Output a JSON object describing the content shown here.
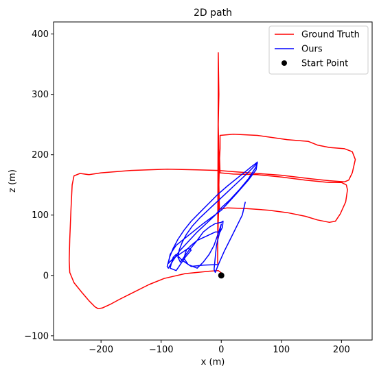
{
  "chart_data": {
    "type": "line",
    "title": "2D path",
    "xlabel": "x (m)",
    "ylabel": "z (m)",
    "xlim": [
      -279,
      251
    ],
    "ylim": [
      -107,
      420
    ],
    "xticks": [
      -200,
      -100,
      0,
      100,
      200
    ],
    "yticks": [
      -100,
      0,
      100,
      200,
      300,
      400
    ],
    "xtick_labels": [
      "−200",
      "−100",
      "0",
      "100",
      "200"
    ],
    "ytick_labels": [
      "−100",
      "0",
      "100",
      "200",
      "300",
      "400"
    ],
    "grid": false,
    "legend_position": "top-right",
    "series": [
      {
        "name": "Ground Truth",
        "color": "#ff0000",
        "values": [
          [
            0,
            0
          ],
          [
            -1,
            5
          ],
          [
            -5,
            8
          ],
          [
            -20,
            7
          ],
          [
            -60,
            3
          ],
          [
            -95,
            -5
          ],
          [
            -120,
            -15
          ],
          [
            -150,
            -30
          ],
          [
            -170,
            -40
          ],
          [
            -185,
            -48
          ],
          [
            -198,
            -54
          ],
          [
            -205,
            -55
          ],
          [
            -210,
            -52
          ],
          [
            -220,
            -42
          ],
          [
            -232,
            -28
          ],
          [
            -245,
            -12
          ],
          [
            -252,
            5
          ],
          [
            -253,
            25
          ],
          [
            -252,
            60
          ],
          [
            -250,
            110
          ],
          [
            -248,
            150
          ],
          [
            -245,
            165
          ],
          [
            -235,
            169
          ],
          [
            -220,
            167
          ],
          [
            -200,
            170
          ],
          [
            -150,
            174
          ],
          [
            -90,
            176
          ],
          [
            -40,
            175
          ],
          [
            -5,
            174
          ],
          [
            20,
            172
          ],
          [
            60,
            169
          ],
          [
            100,
            166
          ],
          [
            150,
            160
          ],
          [
            180,
            157
          ],
          [
            205,
            155
          ],
          [
            212,
            158
          ],
          [
            218,
            170
          ],
          [
            223,
            192
          ],
          [
            218,
            205
          ],
          [
            205,
            210
          ],
          [
            180,
            212
          ],
          [
            160,
            216
          ],
          [
            145,
            222
          ],
          [
            110,
            225
          ],
          [
            60,
            232
          ],
          [
            20,
            234
          ],
          [
            -2,
            232
          ],
          [
            -2,
            210
          ],
          [
            -3,
            190
          ],
          [
            -4,
            150
          ],
          [
            -4,
            120
          ],
          [
            -5,
            90
          ],
          [
            -6,
            50
          ],
          [
            -6,
            20
          ],
          [
            -5,
            340
          ],
          [
            -5,
            369
          ],
          [
            -4,
            300
          ],
          [
            -5,
            250
          ],
          [
            -4,
            200
          ],
          [
            -4,
            150
          ],
          [
            -3,
            110
          ],
          [
            0,
            110
          ],
          [
            10,
            112
          ],
          [
            40,
            111
          ],
          [
            80,
            108
          ],
          [
            110,
            104
          ],
          [
            140,
            98
          ],
          [
            160,
            92
          ],
          [
            180,
            88
          ],
          [
            190,
            90
          ],
          [
            198,
            102
          ],
          [
            207,
            122
          ],
          [
            210,
            142
          ],
          [
            208,
            150
          ],
          [
            200,
            154
          ],
          [
            180,
            154
          ],
          [
            140,
            158
          ],
          [
            100,
            163
          ],
          [
            60,
            167
          ],
          [
            20,
            168
          ],
          [
            -2,
            170
          ],
          [
            -3,
            200
          ]
        ]
      },
      {
        "name": "Ours",
        "color": "#0000ff",
        "values": [
          [
            -10,
            5
          ],
          [
            -8,
            10
          ],
          [
            -5,
            18
          ],
          [
            -30,
            17
          ],
          [
            -50,
            15
          ],
          [
            -65,
            25
          ],
          [
            -75,
            35
          ],
          [
            -80,
            30
          ],
          [
            -83,
            20
          ],
          [
            -85,
            12
          ],
          [
            -75,
            8
          ],
          [
            -60,
            30
          ],
          [
            -50,
            42
          ],
          [
            -55,
            45
          ],
          [
            -65,
            38
          ],
          [
            -80,
            28
          ],
          [
            -88,
            20
          ],
          [
            -85,
            35
          ],
          [
            -75,
            50
          ],
          [
            -55,
            66
          ],
          [
            -30,
            86
          ],
          [
            0,
            108
          ],
          [
            25,
            135
          ],
          [
            45,
            158
          ],
          [
            58,
            175
          ],
          [
            60,
            188
          ],
          [
            58,
            186
          ],
          [
            50,
            180
          ],
          [
            40,
            172
          ],
          [
            25,
            160
          ],
          [
            10,
            148
          ],
          [
            -5,
            135
          ],
          [
            -20,
            120
          ],
          [
            -35,
            105
          ],
          [
            -50,
            90
          ],
          [
            -62,
            75
          ],
          [
            -72,
            60
          ],
          [
            -80,
            45
          ],
          [
            -86,
            30
          ],
          [
            -90,
            15
          ],
          [
            -88,
            12
          ],
          [
            -80,
            25
          ],
          [
            -70,
            40
          ],
          [
            -55,
            56
          ],
          [
            -40,
            72
          ],
          [
            -25,
            86
          ],
          [
            -10,
            100
          ],
          [
            0,
            112
          ],
          [
            15,
            126
          ],
          [
            30,
            142
          ],
          [
            45,
            160
          ],
          [
            58,
            180
          ],
          [
            60,
            186
          ],
          [
            52,
            178
          ],
          [
            40,
            166
          ],
          [
            25,
            152
          ],
          [
            10,
            138
          ],
          [
            -5,
            124
          ],
          [
            -20,
            110
          ],
          [
            -35,
            96
          ],
          [
            -48,
            82
          ],
          [
            -58,
            68
          ],
          [
            -65,
            55
          ],
          [
            -70,
            42
          ],
          [
            -72,
            30
          ],
          [
            -68,
            22
          ],
          [
            -55,
            40
          ],
          [
            -40,
            58
          ],
          [
            -30,
            72
          ],
          [
            -20,
            80
          ],
          [
            -10,
            86
          ],
          [
            0,
            88
          ],
          [
            3,
            90
          ],
          [
            2,
            80
          ],
          [
            -2,
            72
          ],
          [
            -10,
            72
          ],
          [
            -25,
            65
          ],
          [
            -40,
            58
          ],
          [
            -50,
            50
          ],
          [
            -58,
            42
          ],
          [
            -60,
            36
          ],
          [
            -62,
            28
          ],
          [
            -55,
            18
          ],
          [
            -40,
            12
          ],
          [
            -30,
            22
          ],
          [
            -20,
            35
          ],
          [
            -12,
            50
          ],
          [
            -5,
            70
          ],
          [
            0,
            85
          ],
          [
            -3,
            70
          ],
          [
            -8,
            50
          ],
          [
            -10,
            30
          ],
          [
            -12,
            10
          ],
          [
            -10,
            5
          ],
          [
            -4,
            20
          ],
          [
            5,
            40
          ],
          [
            15,
            60
          ],
          [
            25,
            80
          ],
          [
            35,
            100
          ],
          [
            40,
            122
          ]
        ]
      },
      {
        "name": "Start Point",
        "color": "#000000",
        "values": [
          [
            0,
            0
          ]
        ]
      }
    ]
  }
}
